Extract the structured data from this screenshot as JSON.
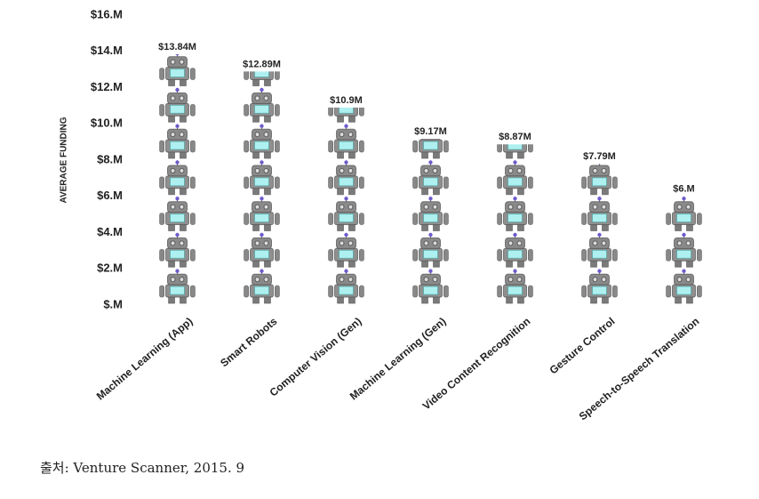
{
  "chart_data": {
    "type": "pictograph",
    "y_label": "AVERAGE FUNDING",
    "categories": [
      "Machine Learning (App)",
      "Smart Robots",
      "Computer Vision (Gen)",
      "Machine Learning (Gen)",
      "Video Content Recognition",
      "Gesture Control",
      "Speech-to-Speech Translation"
    ],
    "values": [
      13.84,
      12.89,
      10.9,
      9.17,
      8.87,
      7.79,
      6.0
    ],
    "value_labels": [
      "$13.84M",
      "$12.89M",
      "$10.9M",
      "$9.17M",
      "$8.87M",
      "$7.79M",
      "$6.M"
    ],
    "ylim": [
      0,
      16
    ],
    "yticks": [
      {
        "value": 0,
        "label": "$.M"
      },
      {
        "value": 2,
        "label": "$2.M"
      },
      {
        "value": 4,
        "label": "$4.M"
      },
      {
        "value": 6,
        "label": "$6.M"
      },
      {
        "value": 8,
        "label": "$8.M"
      },
      {
        "value": 10,
        "label": "$10.M"
      },
      {
        "value": 12,
        "label": "$12.M"
      },
      {
        "value": 14,
        "label": "$14.M"
      },
      {
        "value": 16,
        "label": "$16.M"
      }
    ],
    "icon_value": 2,
    "source": "출처: Venture Scanner, 2015. 9"
  }
}
